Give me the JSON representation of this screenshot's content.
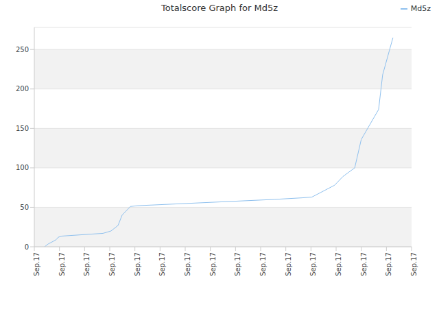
{
  "chart_data": {
    "type": "line",
    "title": "Totalscore Graph for Md5z",
    "legend": "upper right",
    "grid": true,
    "xlim": [
      0,
      15
    ],
    "xticks": [
      {
        "value": 0,
        "label": "Sep.17"
      },
      {
        "value": 1,
        "label": "Sep.17"
      },
      {
        "value": 2,
        "label": "Sep.17"
      },
      {
        "value": 3,
        "label": "Sep.17"
      },
      {
        "value": 4,
        "label": "Sep.17"
      },
      {
        "value": 5,
        "label": "Sep.17"
      },
      {
        "value": 6,
        "label": "Sep.17"
      },
      {
        "value": 7,
        "label": "Sep.17"
      },
      {
        "value": 8,
        "label": "Sep.17"
      },
      {
        "value": 9,
        "label": "Sep.17"
      },
      {
        "value": 10,
        "label": "Sep.17"
      },
      {
        "value": 11,
        "label": "Sep.17"
      },
      {
        "value": 12,
        "label": "Sep.17"
      },
      {
        "value": 13,
        "label": "Sep.17"
      },
      {
        "value": 14,
        "label": "Sep.17"
      },
      {
        "value": 15,
        "label": "Sep.17"
      }
    ],
    "ylim": [
      0,
      278
    ],
    "yticks": [
      0,
      50,
      100,
      150,
      200,
      250
    ],
    "x": [
      0.41,
      0.55,
      0.76,
      0.87,
      0.95,
      1.09,
      2.73,
      3.0,
      3.05,
      3.33,
      3.49,
      3.82,
      4.09,
      6.82,
      9.55,
      10.64,
      11.04,
      11.94,
      12.27,
      12.74,
      13.0,
      13.69,
      13.85,
      14.26
    ],
    "series": [
      {
        "name": "Md5z",
        "color": "#8ec0ee",
        "values": [
          0,
          3.5,
          7,
          9,
          12,
          13.5,
          17,
          19.5,
          20,
          27,
          40,
          51,
          52,
          56,
          60,
          62,
          63,
          78,
          89,
          100,
          136,
          174,
          218,
          265
        ]
      }
    ]
  }
}
